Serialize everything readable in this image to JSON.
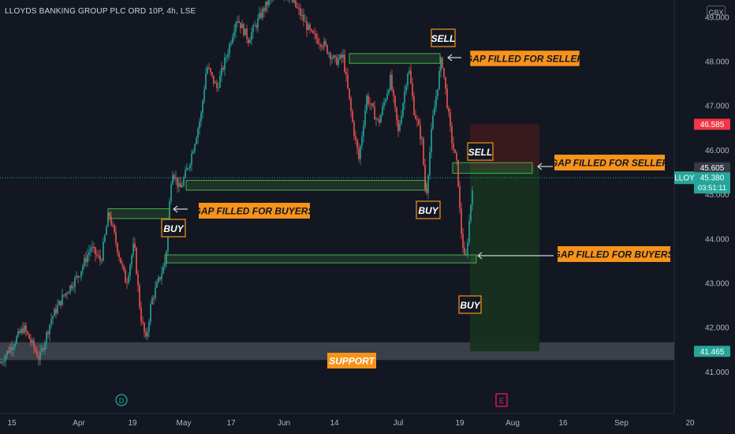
{
  "chart_title": "LLOYDS BANKING GROUP PLC ORD 10P, 4h, LSE",
  "currency": "GBX",
  "symbol": "LLOY",
  "countdown": "03:51:11",
  "colors": {
    "background": "#131722",
    "up": "#26a69a",
    "down": "#ef5350",
    "zone": "#4caf50",
    "label_fill": "#f7931a",
    "stop": "#f23645",
    "profit": "#1b3a2b"
  },
  "chart_data": {
    "type": "candlestick",
    "y_axis": {
      "range": [
        40.55,
        49.6
      ],
      "ticks": [
        "41.000",
        "42.000",
        "43.000",
        "44.000",
        "45.000",
        "46.000",
        "47.000",
        "48.000",
        "49.000"
      ]
    },
    "x_axis": {
      "ticks": [
        "15",
        "Apr",
        "19",
        "May",
        "17",
        "Jun",
        "14",
        "Jul",
        "19",
        "Aug",
        "16",
        "Sep",
        "20"
      ]
    },
    "price_tags": {
      "stop": "46.585",
      "entry": "45.605",
      "last": "45.380",
      "support": "41.465"
    },
    "price_path": [
      [
        0,
        41.2
      ],
      [
        15,
        41.6
      ],
      [
        30,
        42.0
      ],
      [
        50,
        41.3
      ],
      [
        65,
        42.2
      ],
      [
        80,
        42.7
      ],
      [
        100,
        43.2
      ],
      [
        115,
        43.8
      ],
      [
        128,
        43.5
      ],
      [
        138,
        44.6
      ],
      [
        150,
        43.7
      ],
      [
        160,
        43.0
      ],
      [
        170,
        43.9
      ],
      [
        178,
        42.3
      ],
      [
        185,
        41.7
      ],
      [
        192,
        42.6
      ],
      [
        200,
        43.0
      ],
      [
        210,
        43.5
      ],
      [
        218,
        45.6
      ],
      [
        228,
        45.1
      ],
      [
        240,
        45.7
      ],
      [
        255,
        46.8
      ],
      [
        262,
        47.9
      ],
      [
        275,
        47.4
      ],
      [
        290,
        48.3
      ],
      [
        300,
        49.0
      ],
      [
        315,
        48.5
      ],
      [
        335,
        49.2
      ],
      [
        350,
        49.6
      ],
      [
        365,
        49.5
      ],
      [
        380,
        49.1
      ],
      [
        395,
        48.6
      ],
      [
        410,
        48.4
      ],
      [
        425,
        48.0
      ],
      [
        435,
        48.1
      ],
      [
        448,
        46.5
      ],
      [
        455,
        45.8
      ],
      [
        465,
        47.2
      ],
      [
        480,
        46.6
      ],
      [
        495,
        47.6
      ],
      [
        505,
        46.4
      ],
      [
        518,
        47.9
      ],
      [
        525,
        46.9
      ],
      [
        535,
        46.2
      ],
      [
        540,
        44.9
      ],
      [
        548,
        46.6
      ],
      [
        560,
        48.1
      ],
      [
        566,
        47.2
      ],
      [
        572,
        46.3
      ],
      [
        580,
        45.6
      ],
      [
        584,
        44.3
      ],
      [
        590,
        43.4
      ],
      [
        594,
        44.2
      ],
      [
        600,
        45.4
      ]
    ],
    "zones": [
      {
        "label": "GAP FILLED FOR SELLER",
        "y_high": 48.18,
        "y_low": 47.96
      },
      {
        "label": "GAP FILLED FOR SELLER",
        "y_high": 45.72,
        "y_low": 45.48
      },
      {
        "label": "GAP FILLED FOR BUYERS",
        "y_high": 44.68,
        "y_low": 44.46
      },
      {
        "label": "GAP FILLED FOR BUYERS",
        "y_high": 43.64,
        "y_low": 43.46
      },
      {
        "label": "",
        "y_high": 45.32,
        "y_low": 45.1
      }
    ],
    "annotations": [
      {
        "text": "SELL"
      },
      {
        "text": "SELL"
      },
      {
        "text": "BUY"
      },
      {
        "text": "BUY"
      },
      {
        "text": "BUY"
      }
    ],
    "support": {
      "label": "SUPPORT",
      "y_high": 41.67,
      "y_low": 41.27
    },
    "position": {
      "entry": 45.605,
      "stop": 46.585,
      "target": 41.465
    },
    "event_markers": [
      "D",
      "E"
    ]
  }
}
